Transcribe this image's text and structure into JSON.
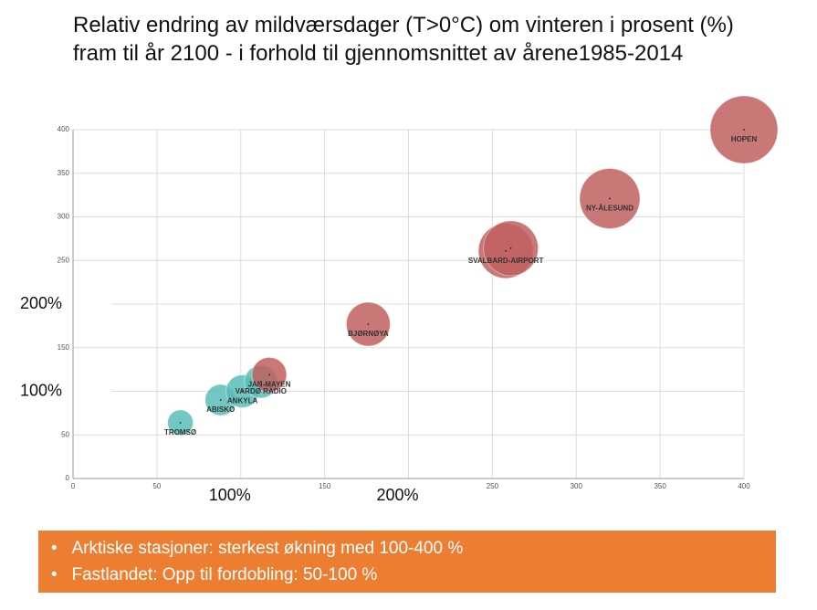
{
  "chart_data": {
    "type": "bubble",
    "title": "Relativ endring av mildværsdager (T>0°C) om vinteren i prosent (%) fram til år 2100 - i forhold til gjennomsnittet av årene1985-2014",
    "xlim": [
      0,
      400
    ],
    "ylim": [
      0,
      400
    ],
    "xticks": [
      0,
      50,
      {
        "value": 100,
        "label": "100%"
      },
      150,
      {
        "value": 200,
        "label": "200%"
      },
      250,
      300,
      350,
      400
    ],
    "yticks": [
      0,
      50,
      {
        "value": 100,
        "label": "100%"
      },
      150,
      {
        "value": 200,
        "label": "200%"
      },
      250,
      300,
      350,
      400
    ],
    "grid": true,
    "points": [
      {
        "name": "TROMSØ",
        "x": 64,
        "y": 64,
        "size": 14,
        "color": "#5bbdb9"
      },
      {
        "name": "ABISKO",
        "x": 88,
        "y": 90,
        "size": 17,
        "color": "#5bbdb9"
      },
      {
        "name": "ANKYLA",
        "x": 101,
        "y": 100,
        "size": 18,
        "color": "#5bbdb9"
      },
      {
        "name": "VARDØ RADIO",
        "x": 112,
        "y": 111,
        "size": 18,
        "color": "#5bbdb9"
      },
      {
        "name": "JAN-MAYEN",
        "x": 117,
        "y": 119,
        "size": 19,
        "color": "#c0605f"
      },
      {
        "name": "BJØRNØYA",
        "x": 176,
        "y": 177,
        "size": 24,
        "color": "#c0605f"
      },
      {
        "name": "SVALBARD-AIRPORT",
        "x": 258,
        "y": 261,
        "size": 30,
        "color": "#c0605f"
      },
      {
        "name": null,
        "x": 261,
        "y": 264,
        "size": 30,
        "color": "#c0605f"
      },
      {
        "name": "NY-ÅLESUND",
        "x": 320,
        "y": 321,
        "size": 33,
        "color": "#c0605f"
      },
      {
        "name": "HOPEN",
        "x": 400,
        "y": 400,
        "size": 37,
        "color": "#c0605f"
      }
    ]
  },
  "bullets": [
    "Arktiske stasjoner: sterkest økning med 100-400 %",
    "Fastlandet: Opp til fordobling: 50-100 %"
  ]
}
